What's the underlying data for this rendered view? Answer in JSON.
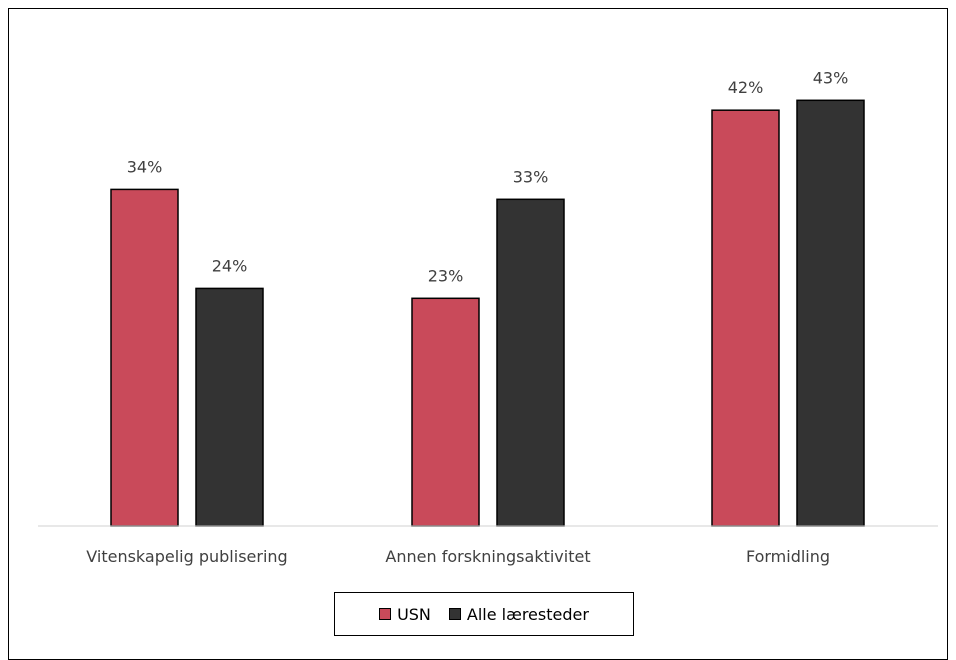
{
  "chart_data": {
    "type": "bar",
    "categories": [
      "Vitenskapelig publisering",
      "Annen forskningsaktivitet",
      "Formidling"
    ],
    "series": [
      {
        "name": "USN",
        "values": [
          34,
          23,
          42
        ],
        "labels": [
          "34%",
          "23%",
          "42%"
        ],
        "color": "#C94A5A"
      },
      {
        "name": "Alle læresteder",
        "values": [
          24,
          33,
          43
        ],
        "labels": [
          "24%",
          "33%",
          "43%"
        ],
        "color": "#333333"
      }
    ],
    "ylim": [
      0,
      50
    ],
    "grid": false,
    "legend_position": "bottom"
  }
}
